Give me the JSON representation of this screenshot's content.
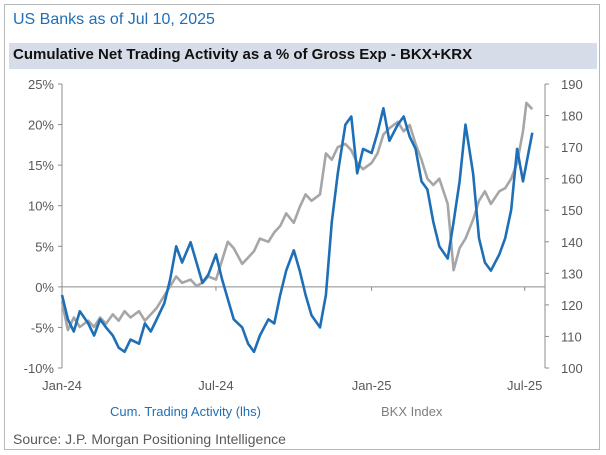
{
  "header": {
    "title": "US Banks as of Jul 10, 2025",
    "subtitle": "Cumulative Net Trading Activity as a % of Gross Exp - BKX+KRX"
  },
  "footer": {
    "source": "Source: J.P. Morgan Positioning Intelligence"
  },
  "colors": {
    "title": "#1f6fb6",
    "subtitle_bg": "#d6dde8",
    "trading": "#1f6fb6",
    "bkx": "#a6a6a6",
    "axis": "#595959"
  },
  "chart_data": {
    "type": "line",
    "grid": false,
    "legend_placement": "bottom",
    "x_ticks": [
      "Jan-24",
      "Jul-24",
      "Jan-25",
      "Jul-25"
    ],
    "x_tick_dates": [
      "2024-01-01",
      "2024-07-01",
      "2025-01-01",
      "2025-07-01"
    ],
    "y_left": {
      "ticks": [
        "25%",
        "20%",
        "15%",
        "10%",
        "5%",
        "0%",
        "-5%",
        "-10%"
      ],
      "values": [
        25,
        20,
        15,
        10,
        5,
        0,
        -5,
        -10
      ],
      "ylim": [
        -10,
        25
      ]
    },
    "y_right": {
      "ticks": [
        "190",
        "180",
        "170",
        "160",
        "150",
        "140",
        "130",
        "120",
        "110",
        "100"
      ],
      "values": [
        190,
        180,
        170,
        160,
        150,
        140,
        130,
        120,
        110,
        100
      ],
      "ylim": [
        100,
        190
      ]
    },
    "series": [
      {
        "name": "Cum. Trading Activity (lhs)",
        "axis": "left",
        "color": "#1f6fb6",
        "points": [
          [
            "2024-01-01",
            -1.0
          ],
          [
            "2024-01-08",
            -4.0
          ],
          [
            "2024-01-15",
            -5.5
          ],
          [
            "2024-01-22",
            -3.0
          ],
          [
            "2024-02-01",
            -4.5
          ],
          [
            "2024-02-08",
            -6.0
          ],
          [
            "2024-02-15",
            -4.0
          ],
          [
            "2024-02-22",
            -5.0
          ],
          [
            "2024-03-01",
            -6.0
          ],
          [
            "2024-03-08",
            -7.5
          ],
          [
            "2024-03-15",
            -8.0
          ],
          [
            "2024-03-22",
            -6.5
          ],
          [
            "2024-04-01",
            -7.0
          ],
          [
            "2024-04-08",
            -4.5
          ],
          [
            "2024-04-15",
            -5.5
          ],
          [
            "2024-04-22",
            -4.0
          ],
          [
            "2024-05-01",
            -2.0
          ],
          [
            "2024-05-08",
            1.0
          ],
          [
            "2024-05-15",
            5.0
          ],
          [
            "2024-05-22",
            3.0
          ],
          [
            "2024-06-01",
            5.5
          ],
          [
            "2024-06-08",
            3.0
          ],
          [
            "2024-06-15",
            0.5
          ],
          [
            "2024-06-22",
            1.5
          ],
          [
            "2024-07-01",
            4.0
          ],
          [
            "2024-07-08",
            1.0
          ],
          [
            "2024-07-15",
            -1.5
          ],
          [
            "2024-07-22",
            -4.0
          ],
          [
            "2024-08-01",
            -5.0
          ],
          [
            "2024-08-08",
            -7.0
          ],
          [
            "2024-08-15",
            -8.0
          ],
          [
            "2024-08-22",
            -6.0
          ],
          [
            "2024-09-01",
            -4.0
          ],
          [
            "2024-09-08",
            -4.5
          ],
          [
            "2024-09-15",
            -1.0
          ],
          [
            "2024-09-22",
            2.0
          ],
          [
            "2024-10-01",
            4.5
          ],
          [
            "2024-10-08",
            2.0
          ],
          [
            "2024-10-15",
            -1.0
          ],
          [
            "2024-10-22",
            -3.5
          ],
          [
            "2024-11-01",
            -5.0
          ],
          [
            "2024-11-08",
            -1.0
          ],
          [
            "2024-11-15",
            8.0
          ],
          [
            "2024-11-22",
            14.0
          ],
          [
            "2024-12-01",
            20.0
          ],
          [
            "2024-12-08",
            21.0
          ],
          [
            "2024-12-15",
            14.0
          ],
          [
            "2024-12-22",
            17.0
          ],
          [
            "2025-01-01",
            16.5
          ],
          [
            "2025-01-08",
            19.0
          ],
          [
            "2025-01-15",
            22.0
          ],
          [
            "2025-01-22",
            18.0
          ],
          [
            "2025-02-01",
            20.0
          ],
          [
            "2025-02-08",
            21.0
          ],
          [
            "2025-02-15",
            18.5
          ],
          [
            "2025-02-22",
            17.0
          ],
          [
            "2025-03-01",
            13.0
          ],
          [
            "2025-03-08",
            12.0
          ],
          [
            "2025-03-15",
            8.0
          ],
          [
            "2025-03-22",
            5.0
          ],
          [
            "2025-04-01",
            3.5
          ],
          [
            "2025-04-08",
            8.0
          ],
          [
            "2025-04-15",
            13.0
          ],
          [
            "2025-04-22",
            20.0
          ],
          [
            "2025-05-01",
            14.0
          ],
          [
            "2025-05-08",
            6.0
          ],
          [
            "2025-05-15",
            3.0
          ],
          [
            "2025-05-22",
            2.0
          ],
          [
            "2025-06-01",
            4.0
          ],
          [
            "2025-06-08",
            6.0
          ],
          [
            "2025-06-15",
            9.5
          ],
          [
            "2025-06-22",
            17.0
          ],
          [
            "2025-06-29",
            13.0
          ],
          [
            "2025-07-10",
            19.0
          ]
        ]
      },
      {
        "name": "BKX Index",
        "axis": "right",
        "color": "#a6a6a6",
        "points": [
          [
            "2024-01-01",
            121
          ],
          [
            "2024-01-08",
            112
          ],
          [
            "2024-01-15",
            116
          ],
          [
            "2024-01-22",
            113
          ],
          [
            "2024-02-01",
            115
          ],
          [
            "2024-02-08",
            113
          ],
          [
            "2024-02-15",
            116
          ],
          [
            "2024-02-22",
            114
          ],
          [
            "2024-03-01",
            117
          ],
          [
            "2024-03-08",
            115
          ],
          [
            "2024-03-15",
            118
          ],
          [
            "2024-03-22",
            116
          ],
          [
            "2024-04-01",
            118
          ],
          [
            "2024-04-08",
            115
          ],
          [
            "2024-04-15",
            117
          ],
          [
            "2024-04-22",
            119
          ],
          [
            "2024-05-01",
            123
          ],
          [
            "2024-05-08",
            126
          ],
          [
            "2024-05-15",
            129
          ],
          [
            "2024-05-22",
            127
          ],
          [
            "2024-06-01",
            128
          ],
          [
            "2024-06-08",
            126
          ],
          [
            "2024-06-15",
            127
          ],
          [
            "2024-06-22",
            129
          ],
          [
            "2024-07-01",
            128
          ],
          [
            "2024-07-08",
            134
          ],
          [
            "2024-07-15",
            140
          ],
          [
            "2024-07-22",
            138
          ],
          [
            "2024-08-01",
            133
          ],
          [
            "2024-08-08",
            135
          ],
          [
            "2024-08-15",
            137
          ],
          [
            "2024-08-22",
            141
          ],
          [
            "2024-09-01",
            140
          ],
          [
            "2024-09-08",
            143
          ],
          [
            "2024-09-15",
            145
          ],
          [
            "2024-09-22",
            149
          ],
          [
            "2024-10-01",
            146
          ],
          [
            "2024-10-08",
            151
          ],
          [
            "2024-10-15",
            155
          ],
          [
            "2024-10-22",
            153
          ],
          [
            "2024-11-01",
            155
          ],
          [
            "2024-11-08",
            168
          ],
          [
            "2024-11-15",
            166
          ],
          [
            "2024-11-22",
            170
          ],
          [
            "2024-12-01",
            171
          ],
          [
            "2024-12-08",
            169
          ],
          [
            "2024-12-15",
            165
          ],
          [
            "2024-12-22",
            163
          ],
          [
            "2025-01-01",
            165
          ],
          [
            "2025-01-08",
            168
          ],
          [
            "2025-01-15",
            174
          ],
          [
            "2025-01-22",
            176
          ],
          [
            "2025-02-01",
            178
          ],
          [
            "2025-02-08",
            175
          ],
          [
            "2025-02-15",
            177
          ],
          [
            "2025-02-22",
            171
          ],
          [
            "2025-03-01",
            166
          ],
          [
            "2025-03-08",
            160
          ],
          [
            "2025-03-15",
            158
          ],
          [
            "2025-03-22",
            160
          ],
          [
            "2025-04-01",
            152
          ],
          [
            "2025-04-08",
            131
          ],
          [
            "2025-04-15",
            138
          ],
          [
            "2025-04-22",
            141
          ],
          [
            "2025-05-01",
            147
          ],
          [
            "2025-05-08",
            153
          ],
          [
            "2025-05-15",
            156
          ],
          [
            "2025-05-22",
            152
          ],
          [
            "2025-06-01",
            156
          ],
          [
            "2025-06-08",
            157
          ],
          [
            "2025-06-15",
            160
          ],
          [
            "2025-06-22",
            165
          ],
          [
            "2025-06-29",
            175
          ],
          [
            "2025-07-03",
            184
          ],
          [
            "2025-07-10",
            182
          ]
        ]
      }
    ]
  }
}
